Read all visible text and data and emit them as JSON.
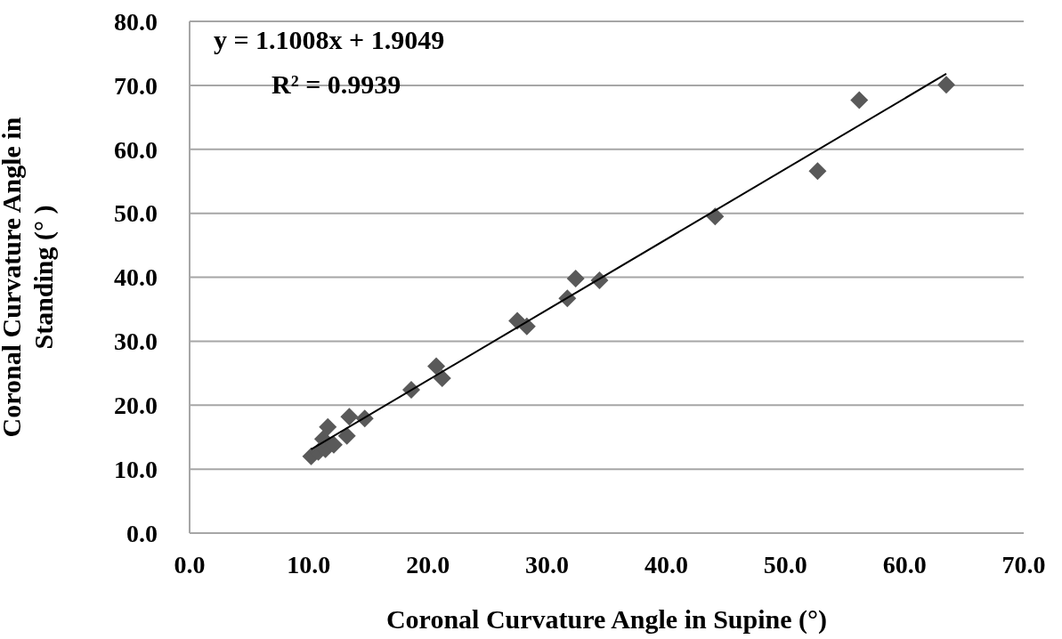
{
  "chart_data": {
    "type": "scatter",
    "xlabel": "Coronal Curvature Angle in Supine (°)",
    "ylabel": "Coronal Curvature Angle in Standing (° )",
    "annotations": [
      "y = 1.1008x + 1.9049",
      "R² = 0.9939"
    ],
    "series": [
      {
        "color": "#595959",
        "marker": "diamond",
        "x": [
          10.2,
          10.8,
          11.4,
          11.2,
          11.6,
          12.1,
          13.2,
          13.4,
          14.7,
          18.6,
          20.7,
          21.2,
          27.5,
          28.3,
          31.7,
          32.4,
          34.4,
          44.1,
          52.7,
          56.2,
          63.5
        ],
        "values": [
          12.0,
          12.7,
          13.1,
          14.7,
          16.6,
          13.8,
          15.2,
          18.2,
          17.9,
          22.4,
          26.1,
          24.2,
          33.2,
          32.3,
          36.7,
          39.8,
          39.5,
          49.5,
          56.6,
          67.7,
          70.1
        ]
      },
      {
        "type": "line",
        "color": "#000000",
        "marker": "none",
        "x": [
          10.2,
          63.5
        ],
        "values": [
          13.1,
          71.8
        ]
      }
    ],
    "xlim": [
      0,
      70
    ],
    "ylim": [
      0,
      80
    ],
    "xticks": [
      {
        "value": 0,
        "label": "0.0"
      },
      {
        "value": 10,
        "label": "10.0"
      },
      {
        "value": 20,
        "label": "20.0"
      },
      {
        "value": 30,
        "label": "30.0"
      },
      {
        "value": 40,
        "label": "40.0"
      },
      {
        "value": 50,
        "label": "50.0"
      },
      {
        "value": 60,
        "label": "60.0"
      },
      {
        "value": 70,
        "label": "70.0"
      }
    ],
    "yticks": [
      {
        "value": 0,
        "label": "0.0"
      },
      {
        "value": 10,
        "label": "10.0"
      },
      {
        "value": 20,
        "label": "20.0"
      },
      {
        "value": 30,
        "label": "30.0"
      },
      {
        "value": 40,
        "label": "40.0"
      },
      {
        "value": 50,
        "label": "50.0"
      },
      {
        "value": 60,
        "label": "60.0"
      },
      {
        "value": 70,
        "label": "70.0"
      },
      {
        "value": 80,
        "label": "80.0"
      }
    ],
    "grid": "y"
  }
}
